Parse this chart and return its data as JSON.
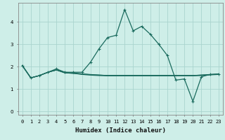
{
  "xlabel": "Humidex (Indice chaleur)",
  "bg_color": "#ceeee8",
  "grid_color": "#aad4ce",
  "line_color": "#1a6b5e",
  "x_ticks": [
    0,
    1,
    2,
    3,
    4,
    5,
    6,
    7,
    8,
    9,
    10,
    11,
    12,
    13,
    14,
    15,
    16,
    17,
    18,
    19,
    20,
    21,
    22,
    23
  ],
  "y_ticks": [
    0,
    1,
    2,
    3,
    4
  ],
  "ylim": [
    -0.15,
    4.85
  ],
  "xlim": [
    -0.5,
    23.5
  ],
  "series": [
    [
      2.05,
      1.5,
      1.6,
      1.75,
      1.9,
      1.75,
      1.75,
      1.75,
      2.2,
      2.8,
      3.3,
      3.4,
      4.55,
      3.6,
      3.8,
      3.45,
      3.0,
      2.5,
      1.4,
      1.45,
      0.45,
      1.55,
      1.65,
      1.65
    ],
    [
      2.05,
      1.5,
      1.6,
      1.75,
      1.85,
      1.75,
      1.72,
      1.68,
      1.65,
      1.63,
      1.6,
      1.6,
      1.6,
      1.6,
      1.6,
      1.6,
      1.6,
      1.6,
      1.6,
      1.6,
      1.6,
      1.63,
      1.65,
      1.68
    ],
    [
      2.05,
      1.5,
      1.6,
      1.75,
      1.85,
      1.72,
      1.7,
      1.67,
      1.64,
      1.62,
      1.61,
      1.61,
      1.61,
      1.61,
      1.61,
      1.61,
      1.61,
      1.61,
      1.61,
      1.61,
      1.61,
      1.62,
      1.64,
      1.67
    ],
    [
      2.05,
      1.5,
      1.6,
      1.75,
      1.85,
      1.72,
      1.7,
      1.65,
      1.62,
      1.6,
      1.59,
      1.59,
      1.59,
      1.59,
      1.59,
      1.59,
      1.59,
      1.59,
      1.59,
      1.59,
      1.59,
      1.6,
      1.63,
      1.65
    ]
  ]
}
